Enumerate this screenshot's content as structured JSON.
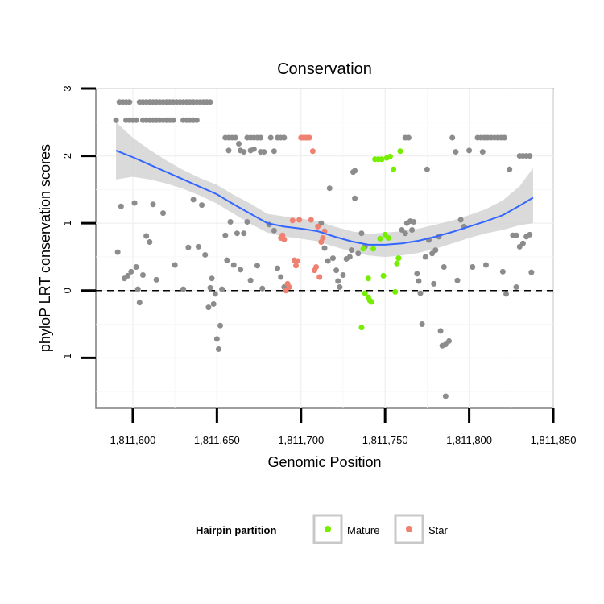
{
  "chart_data": {
    "type": "scatter",
    "title": "Conservation",
    "xlabel": "Genomic Position",
    "ylabel": "phyloP LRT conservation scores",
    "xlim": [
      1811578,
      1811850
    ],
    "ylim": [
      -1.75,
      3.0
    ],
    "x_ticks": [
      1811600,
      1811650,
      1811700,
      1811750,
      1811800,
      1811850
    ],
    "x_tick_labels": [
      "1,811,600",
      "1,811,650",
      "1,811,700",
      "1,811,750",
      "1,811,800",
      "1,811,850"
    ],
    "y_ticks": [
      -1,
      0,
      1,
      2,
      3
    ],
    "y_tick_labels": [
      "-1",
      "0",
      "1",
      "2",
      "3"
    ],
    "reference_line": {
      "y": 0,
      "style": "dashed"
    },
    "grid": true,
    "legend": {
      "title": "Hairpin partition",
      "position": "bottom",
      "entries": [
        {
          "label": "Mature",
          "color": "#76ee00"
        },
        {
          "label": "Star",
          "color": "#f08070"
        }
      ]
    },
    "colors": {
      "other": "#8c8c8c",
      "Mature": "#76ee00",
      "Star": "#f08070",
      "smooth": "#3366ff",
      "band": "#d3d3d3"
    },
    "series": [
      {
        "name": "Other",
        "points": [
          [
            1811590,
            2.53
          ],
          [
            1811592,
            2.8
          ],
          [
            1811594,
            2.8
          ],
          [
            1811596,
            2.8
          ],
          [
            1811598,
            2.8
          ],
          [
            1811596,
            2.53
          ],
          [
            1811598,
            2.53
          ],
          [
            1811600,
            2.53
          ],
          [
            1811602,
            2.53
          ],
          [
            1811606,
            2.53
          ],
          [
            1811608,
            2.53
          ],
          [
            1811610,
            2.53
          ],
          [
            1811612,
            2.53
          ],
          [
            1811614,
            2.53
          ],
          [
            1811616,
            2.53
          ],
          [
            1811618,
            2.53
          ],
          [
            1811620,
            2.53
          ],
          [
            1811622,
            2.53
          ],
          [
            1811624,
            2.53
          ],
          [
            1811630,
            2.53
          ],
          [
            1811632,
            2.53
          ],
          [
            1811634,
            2.53
          ],
          [
            1811636,
            2.53
          ],
          [
            1811638,
            2.53
          ],
          [
            1811604,
            2.8
          ],
          [
            1811606,
            2.8
          ],
          [
            1811608,
            2.8
          ],
          [
            1811610,
            2.8
          ],
          [
            1811612,
            2.8
          ],
          [
            1811614,
            2.8
          ],
          [
            1811616,
            2.8
          ],
          [
            1811618,
            2.8
          ],
          [
            1811620,
            2.8
          ],
          [
            1811622,
            2.8
          ],
          [
            1811624,
            2.8
          ],
          [
            1811626,
            2.8
          ],
          [
            1811628,
            2.8
          ],
          [
            1811630,
            2.8
          ],
          [
            1811632,
            2.8
          ],
          [
            1811634,
            2.8
          ],
          [
            1811636,
            2.8
          ],
          [
            1811638,
            2.8
          ],
          [
            1811640,
            2.8
          ],
          [
            1811642,
            2.8
          ],
          [
            1811644,
            2.8
          ],
          [
            1811646,
            2.8
          ],
          [
            1811591,
            0.57
          ],
          [
            1811593,
            1.25
          ],
          [
            1811595,
            0.18
          ],
          [
            1811597,
            0.22
          ],
          [
            1811599,
            0.28
          ],
          [
            1811601,
            1.3
          ],
          [
            1811602,
            0.35
          ],
          [
            1811603,
            0.02
          ],
          [
            1811604,
            -0.18
          ],
          [
            1811606,
            0.23
          ],
          [
            1811608,
            0.81
          ],
          [
            1811610,
            0.72
          ],
          [
            1811612,
            1.28
          ],
          [
            1811614,
            0.16
          ],
          [
            1811618,
            1.15
          ],
          [
            1811625,
            0.38
          ],
          [
            1811630,
            0.02
          ],
          [
            1811633,
            0.64
          ],
          [
            1811636,
            1.35
          ],
          [
            1811639,
            0.65
          ],
          [
            1811641,
            1.27
          ],
          [
            1811643,
            0.53
          ],
          [
            1811645,
            -0.25
          ],
          [
            1811646,
            0.04
          ],
          [
            1811647,
            0.18
          ],
          [
            1811648,
            -0.2
          ],
          [
            1811649,
            -0.05
          ],
          [
            1811650,
            -0.72
          ],
          [
            1811651,
            -0.87
          ],
          [
            1811652,
            -0.52
          ],
          [
            1811653,
            0.02
          ],
          [
            1811655,
            0.82
          ],
          [
            1811656,
            0.45
          ],
          [
            1811658,
            1.02
          ],
          [
            1811660,
            0.38
          ],
          [
            1811662,
            0.85
          ],
          [
            1811664,
            0.31
          ],
          [
            1811666,
            0.85
          ],
          [
            1811668,
            1.02
          ],
          [
            1811670,
            0.15
          ],
          [
            1811674,
            0.37
          ],
          [
            1811677,
            0.03
          ],
          [
            1811681,
            0.98
          ],
          [
            1811684,
            0.89
          ],
          [
            1811686,
            0.33
          ],
          [
            1811688,
            0.2
          ],
          [
            1811690,
            0.05
          ],
          [
            1811712,
            1.0
          ],
          [
            1811714,
            0.63
          ],
          [
            1811716,
            0.44
          ],
          [
            1811717,
            1.52
          ],
          [
            1811719,
            0.48
          ],
          [
            1811721,
            0.3
          ],
          [
            1811722,
            0.14
          ],
          [
            1811723,
            0.05
          ],
          [
            1811725,
            0.23
          ],
          [
            1811727,
            0.47
          ],
          [
            1811729,
            0.5
          ],
          [
            1811730,
            0.6
          ],
          [
            1811732,
            1.37
          ],
          [
            1811734,
            0.55
          ],
          [
            1811736,
            0.85
          ],
          [
            1811738,
            0.65
          ],
          [
            1811655,
            2.27
          ],
          [
            1811657,
            2.27
          ],
          [
            1811659,
            2.27
          ],
          [
            1811661,
            2.27
          ],
          [
            1811663,
            2.18
          ],
          [
            1811657,
            2.08
          ],
          [
            1811664,
            2.08
          ],
          [
            1811666,
            2.06
          ],
          [
            1811668,
            2.27
          ],
          [
            1811670,
            2.27
          ],
          [
            1811672,
            2.27
          ],
          [
            1811674,
            2.27
          ],
          [
            1811676,
            2.27
          ],
          [
            1811670,
            2.08
          ],
          [
            1811672,
            2.1
          ],
          [
            1811676,
            2.06
          ],
          [
            1811678,
            2.06
          ],
          [
            1811682,
            2.27
          ],
          [
            1811684,
            2.07
          ],
          [
            1811686,
            2.27
          ],
          [
            1811688,
            2.27
          ],
          [
            1811690,
            2.27
          ],
          [
            1811731,
            1.76
          ],
          [
            1811732,
            1.78
          ],
          [
            1811762,
            2.27
          ],
          [
            1811764,
            2.27
          ],
          [
            1811760,
            0.9
          ],
          [
            1811762,
            0.85
          ],
          [
            1811763,
            1.0
          ],
          [
            1811765,
            1.03
          ],
          [
            1811766,
            0.9
          ],
          [
            1811767,
            1.02
          ],
          [
            1811769,
            0.25
          ],
          [
            1811770,
            0.14
          ],
          [
            1811771,
            -0.04
          ],
          [
            1811772,
            -0.5
          ],
          [
            1811774,
            0.5
          ],
          [
            1811775,
            1.8
          ],
          [
            1811776,
            0.75
          ],
          [
            1811778,
            0.55
          ],
          [
            1811779,
            0.1
          ],
          [
            1811780,
            0.6
          ],
          [
            1811782,
            0.8
          ],
          [
            1811783,
            -0.6
          ],
          [
            1811784,
            -0.82
          ],
          [
            1811785,
            0.35
          ],
          [
            1811786,
            -0.8
          ],
          [
            1811788,
            -0.75
          ],
          [
            1811790,
            2.27
          ],
          [
            1811792,
            2.06
          ],
          [
            1811793,
            0.15
          ],
          [
            1811795,
            1.05
          ],
          [
            1811797,
            0.95
          ],
          [
            1811800,
            2.08
          ],
          [
            1811802,
            0.35
          ],
          [
            1811805,
            2.27
          ],
          [
            1811807,
            2.27
          ],
          [
            1811809,
            2.27
          ],
          [
            1811811,
            2.27
          ],
          [
            1811813,
            2.27
          ],
          [
            1811815,
            2.27
          ],
          [
            1811817,
            2.27
          ],
          [
            1811819,
            2.27
          ],
          [
            1811821,
            2.27
          ],
          [
            1811808,
            2.06
          ],
          [
            1811810,
            0.38
          ],
          [
            1811820,
            0.28
          ],
          [
            1811822,
            -0.05
          ],
          [
            1811824,
            1.8
          ],
          [
            1811826,
            0.82
          ],
          [
            1811828,
            0.82
          ],
          [
            1811830,
            2.0
          ],
          [
            1811832,
            2.0
          ],
          [
            1811834,
            2.0
          ],
          [
            1811836,
            2.0
          ],
          [
            1811830,
            0.65
          ],
          [
            1811832,
            0.7
          ],
          [
            1811834,
            0.8
          ],
          [
            1811836,
            0.83
          ],
          [
            1811828,
            0.05
          ],
          [
            1811837,
            0.27
          ],
          [
            1811786,
            -1.57
          ]
        ]
      },
      {
        "name": "Mature",
        "points": [
          [
            1811736,
            -0.55
          ],
          [
            1811737,
            0.62
          ],
          [
            1811738,
            -0.04
          ],
          [
            1811740,
            -0.1
          ],
          [
            1811740,
            0.18
          ],
          [
            1811741,
            -0.15
          ],
          [
            1811742,
            -0.17
          ],
          [
            1811743,
            0.62
          ],
          [
            1811744,
            1.95
          ],
          [
            1811746,
            1.95
          ],
          [
            1811747,
            0.77
          ],
          [
            1811748,
            1.95
          ],
          [
            1811749,
            0.22
          ],
          [
            1811750,
            0.83
          ],
          [
            1811751,
            1.97
          ],
          [
            1811752,
            0.78
          ],
          [
            1811753,
            1.99
          ],
          [
            1811755,
            1.8
          ],
          [
            1811756,
            -0.02
          ],
          [
            1811757,
            0.4
          ],
          [
            1811758,
            0.48
          ],
          [
            1811759,
            2.07
          ]
        ]
      },
      {
        "name": "Star",
        "points": [
          [
            1811688,
            0.78
          ],
          [
            1811689,
            0.82
          ],
          [
            1811690,
            0.76
          ],
          [
            1811691,
            0.0
          ],
          [
            1811692,
            0.1
          ],
          [
            1811693,
            0.05
          ],
          [
            1811695,
            1.04
          ],
          [
            1811696,
            0.45
          ],
          [
            1811697,
            0.37
          ],
          [
            1811698,
            0.44
          ],
          [
            1811699,
            1.05
          ],
          [
            1811700,
            2.27
          ],
          [
            1811701,
            2.27
          ],
          [
            1811702,
            2.27
          ],
          [
            1811703,
            2.27
          ],
          [
            1811704,
            2.27
          ],
          [
            1811705,
            2.27
          ],
          [
            1811706,
            1.05
          ],
          [
            1811707,
            2.07
          ],
          [
            1811708,
            0.3
          ],
          [
            1811709,
            0.35
          ],
          [
            1811710,
            0.95
          ],
          [
            1811711,
            0.2
          ],
          [
            1811712,
            0.72
          ],
          [
            1811713,
            0.78
          ],
          [
            1811714,
            0.88
          ]
        ]
      }
    ],
    "smooth_curve": {
      "x": [
        1811590,
        1811600,
        1811610,
        1811620,
        1811630,
        1811640,
        1811650,
        1811660,
        1811670,
        1811680,
        1811690,
        1811700,
        1811710,
        1811720,
        1811730,
        1811740,
        1811750,
        1811760,
        1811770,
        1811780,
        1811790,
        1811800,
        1811810,
        1811820,
        1811830,
        1811838
      ],
      "y": [
        2.08,
        1.98,
        1.87,
        1.76,
        1.65,
        1.54,
        1.43,
        1.28,
        1.14,
        1.0,
        0.95,
        0.92,
        0.88,
        0.8,
        0.73,
        0.68,
        0.68,
        0.7,
        0.74,
        0.8,
        0.87,
        0.95,
        1.03,
        1.12,
        1.26,
        1.38
      ],
      "lower": [
        1.65,
        1.69,
        1.65,
        1.59,
        1.51,
        1.41,
        1.29,
        1.14,
        0.99,
        0.86,
        0.8,
        0.77,
        0.73,
        0.65,
        0.58,
        0.52,
        0.5,
        0.52,
        0.56,
        0.62,
        0.7,
        0.78,
        0.85,
        0.9,
        0.97,
        1.0
      ],
      "upper": [
        2.5,
        2.27,
        2.09,
        1.93,
        1.79,
        1.67,
        1.57,
        1.42,
        1.29,
        1.14,
        1.1,
        1.07,
        1.03,
        0.95,
        0.88,
        0.84,
        0.86,
        0.88,
        0.92,
        0.98,
        1.04,
        1.12,
        1.21,
        1.34,
        1.55,
        1.82
      ]
    }
  }
}
